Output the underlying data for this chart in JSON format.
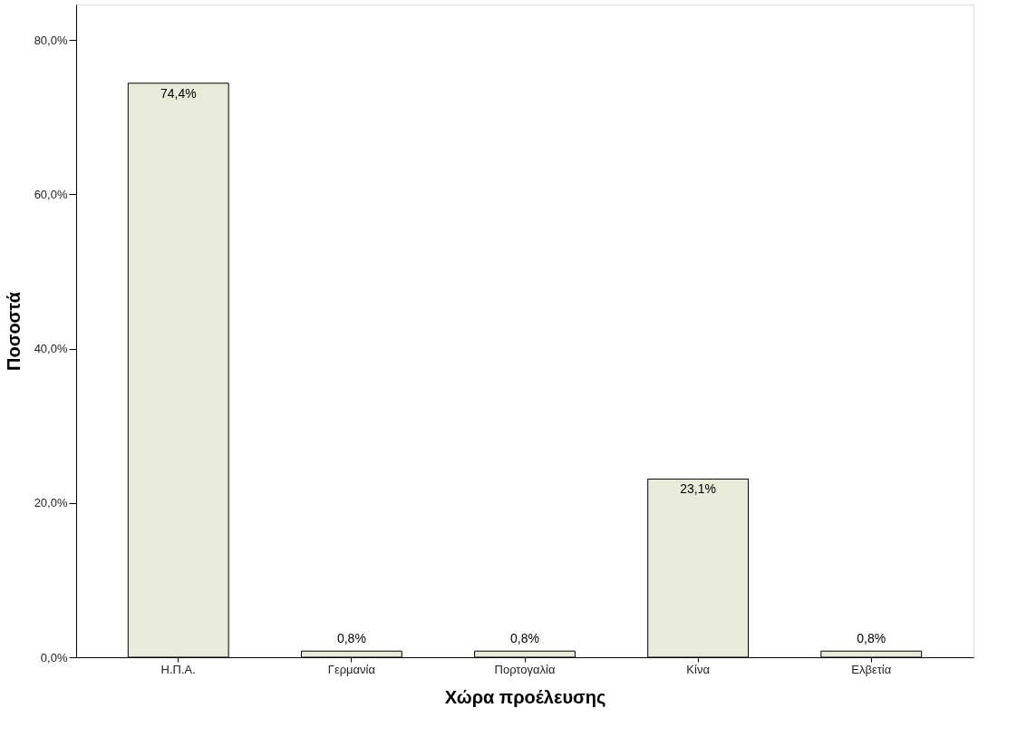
{
  "chart_data": {
    "type": "bar",
    "xlabel": "Χώρα προέλευσης",
    "ylabel": "Ποσοστά",
    "categories": [
      "Η.Π.Α.",
      "Γερμανία",
      "Πορτογαλία",
      "Κίνα",
      "Ελβετία"
    ],
    "values": [
      74.4,
      0.8,
      0.8,
      23.1,
      0.8
    ],
    "value_labels": [
      "74,4%",
      "0,8%",
      "0,8%",
      "23,1%",
      "0,8%"
    ],
    "color": "#e8ebd9",
    "ylim": [
      0,
      84.6
    ],
    "yticks": [
      {
        "value": 0,
        "label": "0,0%"
      },
      {
        "value": 20,
        "label": "20,0%"
      },
      {
        "value": 40,
        "label": "40,0%"
      },
      {
        "value": 60,
        "label": "60,0%"
      },
      {
        "value": 80,
        "label": "80,0%"
      }
    ],
    "grid": false
  }
}
